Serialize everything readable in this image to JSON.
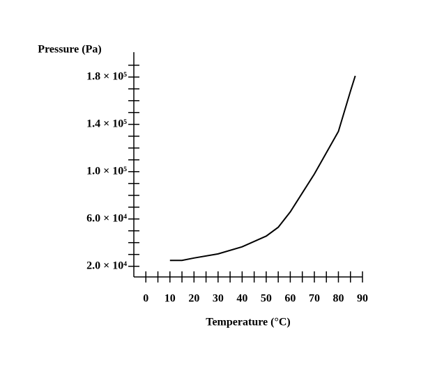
{
  "chart_data": {
    "type": "line",
    "x_label": "Temperature (°C)",
    "y_label": "Pressure (Pa)",
    "x": [
      10,
      15,
      20,
      30,
      40,
      50,
      55,
      60,
      65,
      70,
      75,
      80,
      85,
      87
    ],
    "values": [
      25000,
      25000,
      27000,
      30500,
      36500,
      45500,
      53000,
      66000,
      82000,
      98000,
      116000,
      134000,
      168000,
      181000
    ],
    "color": "#000000",
    "xlim": [
      -5,
      90
    ],
    "xticks": [
      0,
      10,
      20,
      30,
      40,
      50,
      60,
      70,
      80,
      90
    ],
    "xminor_ticks": [
      5,
      15,
      25,
      35,
      45,
      55,
      65,
      75,
      85
    ],
    "ylim": [
      11000,
      201000
    ],
    "yticks": [
      {
        "value": 20000,
        "label": "2.0 × 10⁴"
      },
      {
        "value": 60000,
        "label": "6.0 × 10⁴"
      },
      {
        "value": 100000,
        "label": "1.0 × 10⁵"
      },
      {
        "value": 140000,
        "label": "1.4 × 10⁵"
      },
      {
        "value": 180000,
        "label": "1.8 × 10⁵"
      }
    ],
    "yminor_ticks": [
      30000,
      40000,
      50000,
      70000,
      80000,
      90000,
      110000,
      120000,
      130000,
      150000,
      160000,
      170000,
      190000
    ],
    "grid": false
  }
}
